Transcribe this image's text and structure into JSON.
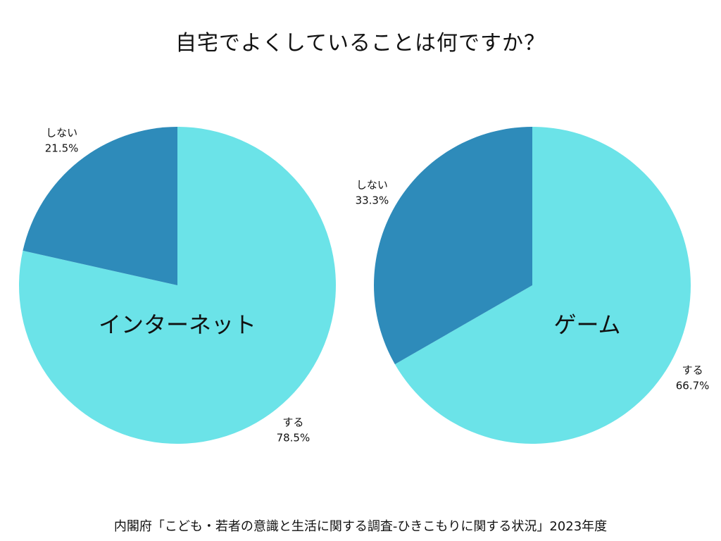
{
  "title": "自宅でよくしていることは何ですか？",
  "source": "内閣府「こども・若者の意識と生活に関する調査-ひきこもりに関する状況」2023年度",
  "colors": {
    "suru": "#6be3e8",
    "shinai": "#2e8bba",
    "text": "#111111"
  },
  "chart_data": [
    {
      "type": "pie",
      "center_label": "インターネット",
      "slices": [
        {
          "label": "する",
          "value": 78.5,
          "value_label": "78.5%"
        },
        {
          "label": "しない",
          "value": 21.5,
          "value_label": "21.5%"
        }
      ]
    },
    {
      "type": "pie",
      "center_label": "ゲーム",
      "slices": [
        {
          "label": "する",
          "value": 66.7,
          "value_label": "66.7%"
        },
        {
          "label": "しない",
          "value": 33.3,
          "value_label": "33.3%"
        }
      ]
    }
  ]
}
